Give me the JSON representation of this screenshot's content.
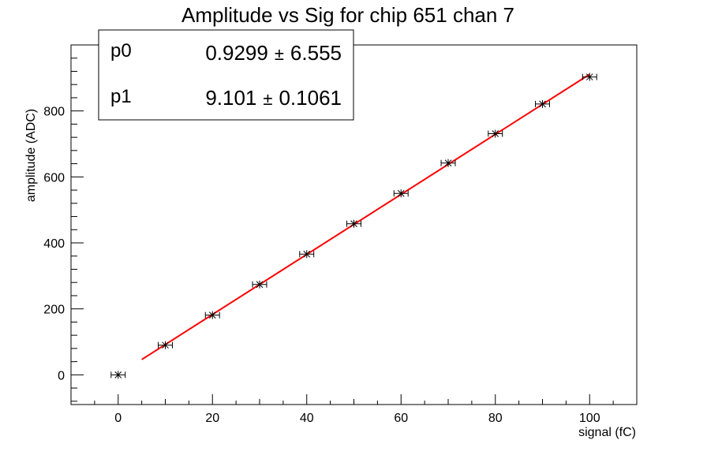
{
  "chart_data": {
    "type": "scatter",
    "title": "Amplitude vs Sig for chip 651 chan 7",
    "xlabel": "signal (fC)",
    "ylabel": "amplitude (ADC)",
    "xlim": [
      -10,
      110
    ],
    "ylim": [
      -90,
      1000
    ],
    "xticks": [
      0,
      20,
      40,
      60,
      80,
      100
    ],
    "yticks": [
      0,
      200,
      400,
      600,
      800
    ],
    "grid": false,
    "marker": "star",
    "points": [
      {
        "x": 0,
        "y": 0
      },
      {
        "x": 10,
        "y": 90
      },
      {
        "x": 20,
        "y": 181
      },
      {
        "x": 30,
        "y": 274
      },
      {
        "x": 40,
        "y": 366
      },
      {
        "x": 50,
        "y": 458
      },
      {
        "x": 60,
        "y": 550
      },
      {
        "x": 70,
        "y": 642
      },
      {
        "x": 80,
        "y": 731
      },
      {
        "x": 90,
        "y": 821
      },
      {
        "x": 100,
        "y": 903
      }
    ],
    "x_error": 1.5,
    "fit": {
      "color": "#ff0000",
      "x_range": [
        5,
        100
      ],
      "p0": 0.9299,
      "p1": 9.101
    },
    "stats_box": {
      "placement": "top-left",
      "rows": [
        {
          "name": "p0",
          "value": "0.9299",
          "error": "6.555"
        },
        {
          "name": "p1",
          "value": "9.101",
          "error": "0.1061"
        }
      ],
      "pm": "±"
    }
  }
}
